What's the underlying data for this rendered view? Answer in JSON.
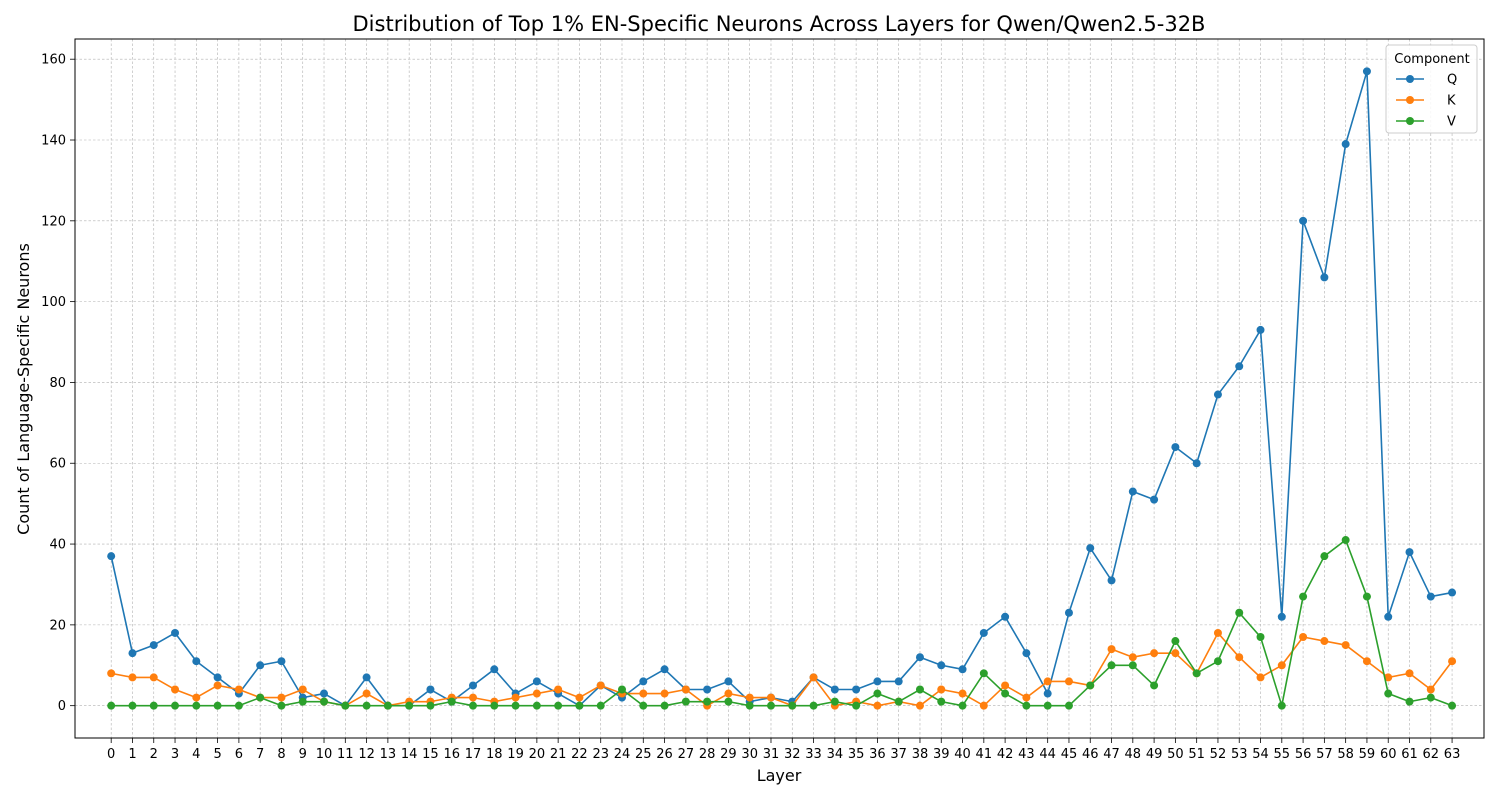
{
  "chart_data": {
    "type": "line",
    "title": "Distribution of Top 1% EN-Specific Neurons Across Layers for Qwen/Qwen2.5-32B",
    "xlabel": "Layer",
    "ylabel": "Count of Language-Specific Neurons",
    "x": [
      0,
      1,
      2,
      3,
      4,
      5,
      6,
      7,
      8,
      9,
      10,
      11,
      12,
      13,
      14,
      15,
      16,
      17,
      18,
      19,
      20,
      21,
      22,
      23,
      24,
      25,
      26,
      27,
      28,
      29,
      30,
      31,
      32,
      33,
      34,
      35,
      36,
      37,
      38,
      39,
      40,
      41,
      42,
      43,
      44,
      45,
      46,
      47,
      48,
      49,
      50,
      51,
      52,
      53,
      54,
      55,
      56,
      57,
      58,
      59,
      60,
      61,
      62,
      63
    ],
    "xticks": [
      "0",
      "1",
      "2",
      "3",
      "4",
      "5",
      "6",
      "7",
      "8",
      "9",
      "10",
      "11",
      "12",
      "13",
      "14",
      "15",
      "16",
      "17",
      "18",
      "19",
      "20",
      "21",
      "22",
      "23",
      "24",
      "25",
      "26",
      "27",
      "28",
      "29",
      "30",
      "31",
      "32",
      "33",
      "34",
      "35",
      "36",
      "37",
      "38",
      "39",
      "40",
      "41",
      "42",
      "43",
      "44",
      "45",
      "46",
      "47",
      "48",
      "49",
      "50",
      "51",
      "52",
      "53",
      "54",
      "55",
      "56",
      "57",
      "58",
      "59",
      "60",
      "61",
      "62",
      "63"
    ],
    "ylim": [
      -8,
      165
    ],
    "yticks": [
      0,
      20,
      40,
      60,
      80,
      100,
      120,
      140,
      160
    ],
    "yticklabels": [
      "0",
      "20",
      "40",
      "60",
      "80",
      "100",
      "120",
      "140",
      "160"
    ],
    "grid": true,
    "legend": {
      "title": "Component",
      "position": "top-right"
    },
    "series": [
      {
        "name": "Q",
        "color": "#1f77b4",
        "values": [
          37,
          13,
          15,
          18,
          11,
          7,
          3,
          10,
          11,
          2,
          3,
          0,
          7,
          0,
          0,
          4,
          1,
          5,
          9,
          3,
          6,
          3,
          0,
          5,
          2,
          6,
          9,
          4,
          4,
          6,
          1,
          2,
          1,
          7,
          4,
          4,
          6,
          6,
          12,
          10,
          9,
          18,
          22,
          13,
          3,
          23,
          39,
          31,
          53,
          51,
          64,
          60,
          77,
          84,
          93,
          22,
          120,
          106,
          139,
          157,
          22,
          38,
          27,
          28
        ]
      },
      {
        "name": "K",
        "color": "#ff7f0e",
        "values": [
          8,
          7,
          7,
          4,
          2,
          5,
          4,
          2,
          2,
          4,
          1,
          0,
          3,
          0,
          1,
          1,
          2,
          2,
          1,
          2,
          3,
          4,
          2,
          5,
          3,
          3,
          3,
          4,
          0,
          3,
          2,
          2,
          0,
          7,
          0,
          1,
          0,
          1,
          0,
          4,
          3,
          0,
          5,
          2,
          6,
          6,
          5,
          14,
          12,
          13,
          13,
          8,
          18,
          12,
          7,
          10,
          17,
          16,
          15,
          11,
          7,
          8,
          4,
          11
        ]
      },
      {
        "name": "V",
        "color": "#2ca02c",
        "values": [
          0,
          0,
          0,
          0,
          0,
          0,
          0,
          2,
          0,
          1,
          1,
          0,
          0,
          0,
          0,
          0,
          1,
          0,
          0,
          0,
          0,
          0,
          0,
          0,
          4,
          0,
          0,
          1,
          1,
          1,
          0,
          0,
          0,
          0,
          1,
          0,
          3,
          1,
          4,
          1,
          0,
          8,
          3,
          0,
          0,
          0,
          5,
          10,
          10,
          5,
          16,
          8,
          11,
          23,
          17,
          0,
          27,
          37,
          41,
          27,
          3,
          1,
          2,
          0
        ]
      }
    ]
  }
}
